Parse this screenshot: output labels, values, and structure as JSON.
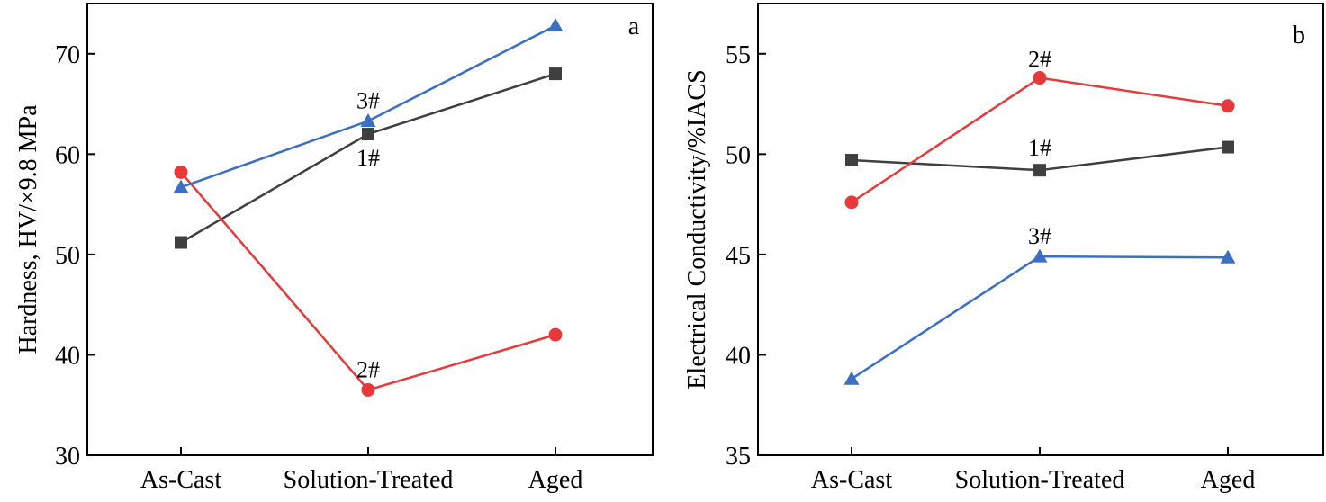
{
  "figure": {
    "colors": {
      "1#": "#3f3f3f",
      "2#": "#e8393a",
      "3#": "#3b6fc4",
      "axis": "#000000"
    }
  },
  "chart_data": [
    {
      "type": "line",
      "panel": "a",
      "categories": [
        "As-Cast",
        "Solution-Treated",
        "Aged"
      ],
      "ylabel": "Hardness, HV/×9.8 MPa",
      "xlabel": "",
      "ylim": [
        30,
        75
      ],
      "yticks": [
        30,
        40,
        50,
        60,
        70
      ],
      "series": [
        {
          "name": "1#",
          "marker": "square",
          "color": "#3f3f3f",
          "values": [
            51.2,
            62.0,
            68.0
          ]
        },
        {
          "name": "2#",
          "marker": "circle",
          "color": "#e8393a",
          "values": [
            58.2,
            36.5,
            42.0
          ]
        },
        {
          "name": "3#",
          "marker": "triangle",
          "color": "#3b6fc4",
          "values": [
            56.7,
            63.3,
            72.8
          ]
        }
      ],
      "annotations": [
        {
          "text": "3#",
          "series": "3#",
          "category": "Solution-Treated",
          "placement": "above"
        },
        {
          "text": "1#",
          "series": "1#",
          "category": "Solution-Treated",
          "placement": "below"
        },
        {
          "text": "2#",
          "series": "2#",
          "category": "Solution-Treated",
          "placement": "above"
        }
      ]
    },
    {
      "type": "line",
      "panel": "b",
      "categories": [
        "As-Cast",
        "Solution-Treated",
        "Aged"
      ],
      "ylabel": "Electrical Conductivity/%IACS",
      "xlabel": "",
      "ylim": [
        35,
        57.5
      ],
      "yticks": [
        35,
        40,
        45,
        50,
        55
      ],
      "series": [
        {
          "name": "1#",
          "marker": "square",
          "color": "#3f3f3f",
          "values": [
            49.7,
            49.2,
            50.35
          ]
        },
        {
          "name": "2#",
          "marker": "circle",
          "color": "#e8393a",
          "values": [
            47.6,
            53.8,
            52.4
          ]
        },
        {
          "name": "3#",
          "marker": "triangle",
          "color": "#3b6fc4",
          "values": [
            38.8,
            44.9,
            44.85
          ]
        }
      ],
      "annotations": [
        {
          "text": "2#",
          "series": "2#",
          "category": "Solution-Treated",
          "placement": "above"
        },
        {
          "text": "1#",
          "series": "1#",
          "category": "Solution-Treated",
          "placement": "above"
        },
        {
          "text": "3#",
          "series": "3#",
          "category": "Solution-Treated",
          "placement": "above"
        }
      ]
    }
  ]
}
